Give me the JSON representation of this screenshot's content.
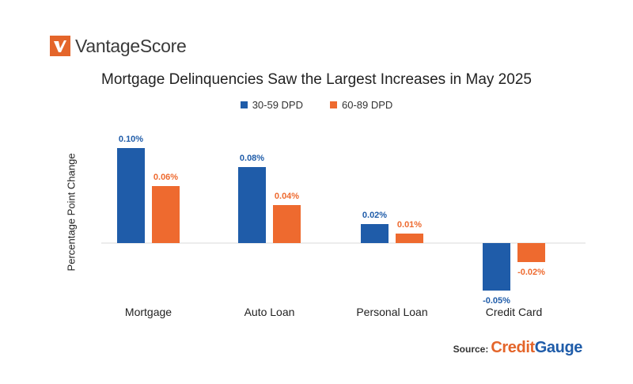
{
  "logo": {
    "text": "VantageScore",
    "mark_color": "#e4652a",
    "icon": "vantagescore-logo-mark"
  },
  "source": {
    "label": "Source:",
    "brand_part1": "Credit",
    "brand_part2": "Gauge"
  },
  "chart_data": {
    "type": "bar",
    "title": "Mortgage Delinquencies Saw the Largest Increases in May 2025",
    "xlabel": "",
    "ylabel": "Percentage Point Change",
    "categories": [
      "Mortgage",
      "Auto Loan",
      "Personal Loan",
      "Credit Card"
    ],
    "series": [
      {
        "name": "30-59 DPD",
        "color": "#1f5ca9",
        "values": [
          0.1,
          0.08,
          0.02,
          -0.05
        ],
        "labels": [
          "0.10%",
          "0.08%",
          "0.02%",
          "-0.05%"
        ]
      },
      {
        "name": "60-89 DPD",
        "color": "#ee6a2f",
        "values": [
          0.06,
          0.04,
          0.01,
          -0.02
        ],
        "labels": [
          "0.06%",
          "0.04%",
          "0.01%",
          "-0.02%"
        ]
      }
    ],
    "ylim": [
      -0.05,
      0.1
    ],
    "grid": false,
    "legend": "top-center"
  }
}
